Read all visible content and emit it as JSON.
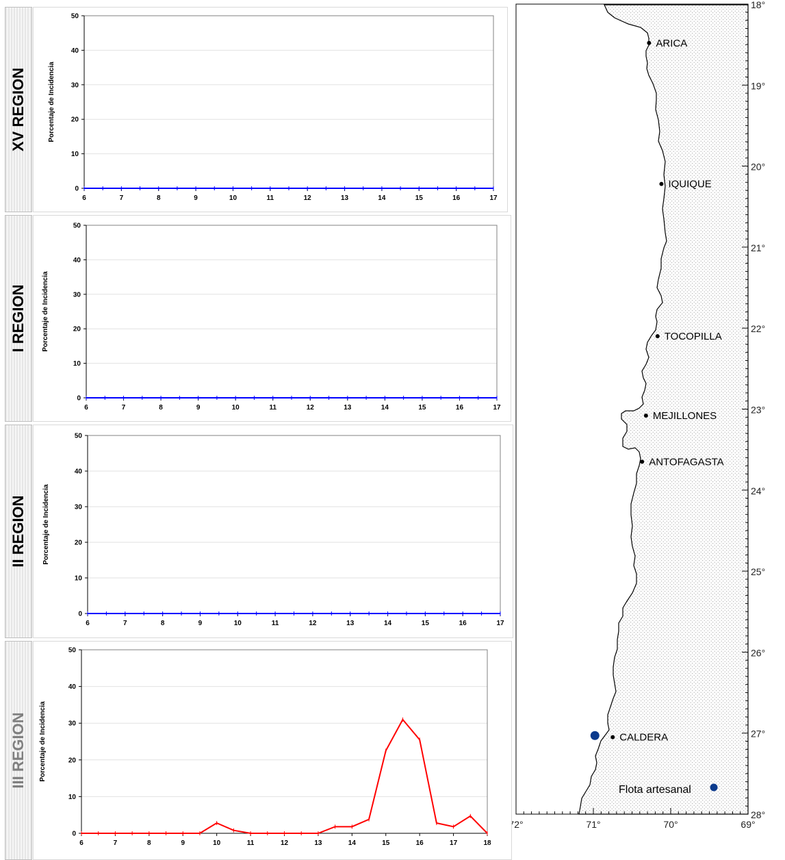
{
  "chart_data": [
    {
      "type": "line",
      "region": "XV REGION",
      "ylabel": "Porcentaje de Incidencia",
      "ylim": [
        0,
        50
      ],
      "yticks": [
        0,
        10,
        20,
        30,
        40,
        50
      ],
      "xlim": [
        6,
        17
      ],
      "xticks": [
        6,
        7,
        8,
        9,
        10,
        11,
        12,
        13,
        14,
        15,
        16,
        17
      ],
      "series": [
        {
          "color": "#0000ff",
          "x": [
            6,
            6.5,
            7,
            7.5,
            8,
            8.5,
            9,
            9.5,
            10,
            10.5,
            11,
            11.5,
            12,
            12.5,
            13,
            13.5,
            14,
            14.5,
            15,
            15.5,
            16,
            16.5,
            17
          ],
          "y": [
            0,
            0,
            0,
            0,
            0,
            0,
            0,
            0,
            0,
            0,
            0,
            0,
            0,
            0,
            0,
            0,
            0,
            0,
            0,
            0,
            0,
            0,
            0
          ]
        }
      ]
    },
    {
      "type": "line",
      "region": "I REGION",
      "ylabel": "Porcentaje de Incidencia",
      "ylim": [
        0,
        50
      ],
      "yticks": [
        0,
        10,
        20,
        30,
        40,
        50
      ],
      "xlim": [
        6,
        17
      ],
      "xticks": [
        6,
        7,
        8,
        9,
        10,
        11,
        12,
        13,
        14,
        15,
        16,
        17
      ],
      "series": [
        {
          "color": "#0000ff",
          "x": [
            6,
            6.5,
            7,
            7.5,
            8,
            8.5,
            9,
            9.5,
            10,
            10.5,
            11,
            11.5,
            12,
            12.5,
            13,
            13.5,
            14,
            14.5,
            15,
            15.5,
            16,
            16.5,
            17
          ],
          "y": [
            0,
            0,
            0,
            0,
            0,
            0,
            0,
            0,
            0,
            0,
            0,
            0,
            0,
            0,
            0,
            0,
            0,
            0,
            0,
            0,
            0,
            0,
            0
          ]
        }
      ]
    },
    {
      "type": "line",
      "region": "II REGION",
      "ylabel": "Porcentaje de Incidencia",
      "ylim": [
        0,
        50
      ],
      "yticks": [
        0,
        10,
        20,
        30,
        40,
        50
      ],
      "xlim": [
        6,
        17
      ],
      "xticks": [
        6,
        7,
        8,
        9,
        10,
        11,
        12,
        13,
        14,
        15,
        16,
        17
      ],
      "series": [
        {
          "color": "#0000ff",
          "x": [
            6,
            6.5,
            7,
            7.5,
            8,
            8.5,
            9,
            9.5,
            10,
            10.5,
            11,
            11.5,
            12,
            12.5,
            13,
            13.5,
            14,
            14.5,
            15,
            15.5,
            16,
            16.5,
            17
          ],
          "y": [
            0,
            0,
            0,
            0,
            0,
            0,
            0,
            0,
            0,
            0,
            0,
            0,
            0,
            0,
            0,
            0,
            0,
            0,
            0,
            0,
            0,
            0,
            0
          ]
        }
      ]
    },
    {
      "type": "line",
      "region": "III REGION",
      "ylabel": "Porcentaje de Incidencia",
      "ylim": [
        0,
        50
      ],
      "yticks": [
        0,
        10,
        20,
        30,
        40,
        50
      ],
      "xlim": [
        6,
        18
      ],
      "xticks": [
        6,
        7,
        8,
        9,
        10,
        11,
        12,
        13,
        14,
        15,
        16,
        17,
        18
      ],
      "series": [
        {
          "color": "#ff0000",
          "x": [
            6,
            6.5,
            7,
            7.5,
            8,
            8.5,
            9,
            9.5,
            10,
            10.5,
            11,
            11.5,
            12,
            12.5,
            13,
            13.5,
            14,
            14.5,
            15,
            15.5,
            16,
            16.5,
            17,
            17.5,
            18
          ],
          "y": [
            0,
            0,
            0,
            0,
            0,
            0,
            0,
            0,
            2.8,
            0.8,
            0,
            0,
            0,
            0,
            0,
            1.8,
            1.8,
            3.8,
            22.5,
            31,
            25.5,
            2.8,
            1.8,
            4.7,
            0
          ]
        }
      ]
    }
  ],
  "map": {
    "lat_labels": [
      "18°",
      "19°",
      "20°",
      "21°",
      "22°",
      "23°",
      "24°",
      "25°",
      "26°",
      "27°",
      "28°"
    ],
    "lon_labels": [
      "72°",
      "71°",
      "70°",
      "69°"
    ],
    "cities": [
      {
        "name": "ARICA",
        "lon": 70.28,
        "lat": 18.48
      },
      {
        "name": "IQUIQUE",
        "lon": 70.12,
        "lat": 20.22
      },
      {
        "name": "TOCOPILLA",
        "lon": 70.17,
        "lat": 22.1
      },
      {
        "name": "MEJILLONES",
        "lon": 70.32,
        "lat": 23.08
      },
      {
        "name": "ANTOFAGASTA",
        "lon": 70.37,
        "lat": 23.65
      },
      {
        "name": "CALDERA",
        "lon": 70.75,
        "lat": 27.05
      }
    ],
    "fleet_station": {
      "lon": 70.98,
      "lat": 27.03
    },
    "legend_label": "Flota artesanal",
    "legend_color": "#0b3a8c"
  }
}
